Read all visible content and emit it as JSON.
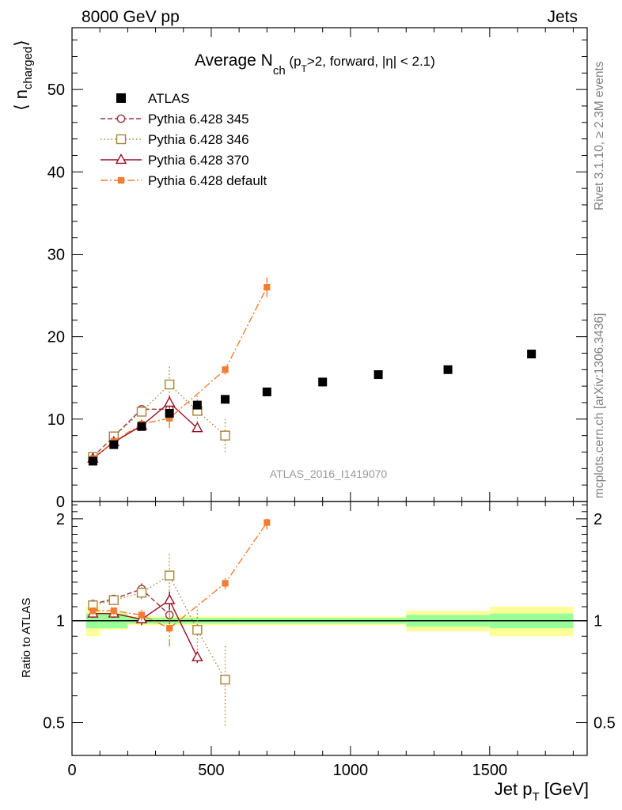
{
  "header": {
    "left": "8000 GeV pp",
    "right": "Jets",
    "side_top": "Rivet 3.1.10, ≥ 2.3M events",
    "side_bottom": "mcplots.cern.ch [arXiv:1306.3436]",
    "watermark": "ATLAS_2016_I1419070"
  },
  "title": {
    "pre": "Average N",
    "sub": "ch",
    "mid": " (p",
    "sub2": "T",
    "post": ">2, forward, |η| < 2.1)"
  },
  "axes": {
    "ylabel_main": "⟨ n",
    "ylabel_main_sub": "charged",
    "ylabel_main_close": "⟩",
    "ylabel_ratio": "Ratio to ATLAS",
    "xlabel": "Jet p",
    "xlabel_sub": "T",
    "xlabel_unit": " [GeV]"
  },
  "chart_data": {
    "type": "scatter",
    "x_range": [
      0,
      1850
    ],
    "y_range_main": [
      0,
      57.5
    ],
    "y_range_ratio": [
      0.4,
      2.25
    ],
    "ratio_scale": "log",
    "x_ticks": [
      0,
      500,
      1000,
      1500
    ],
    "y_ticks_main": [
      0,
      10,
      20,
      30,
      40,
      50
    ],
    "y_ticks_ratio": [
      0.5,
      1,
      2
    ],
    "legend_position": "top-left",
    "reference": {
      "name": "ATLAS",
      "color": "#000000",
      "x": [
        75,
        150,
        250,
        350,
        450,
        550,
        700,
        900,
        1100,
        1350,
        1650
      ],
      "xerr": [
        25,
        50,
        50,
        50,
        50,
        50,
        100,
        100,
        100,
        150,
        150
      ],
      "y": [
        4.9,
        6.9,
        9.1,
        10.7,
        11.7,
        12.4,
        13.3,
        14.5,
        15.4,
        16.0,
        17.9
      ],
      "band_stat": [
        0.05,
        0.05,
        0.02,
        0.02,
        0.02,
        0.02,
        0.02,
        0.02,
        0.02,
        0.04,
        0.05
      ],
      "band_tot": [
        0.1,
        0.06,
        0.03,
        0.03,
        0.03,
        0.03,
        0.03,
        0.03,
        0.03,
        0.07,
        0.1
      ]
    },
    "series": [
      {
        "name": "Pythia 6.428 345",
        "color": "#993341",
        "marker": "open-circle",
        "dash": "6,3",
        "x": [
          75,
          150,
          250,
          350
        ],
        "y": [
          5.4,
          7.9,
          11.2,
          11.2
        ],
        "yerr": [
          0.3,
          0.3,
          0.5,
          1.2
        ],
        "ratio": [
          1.12,
          1.16,
          1.24,
          1.04
        ],
        "ratio_err": [
          0.03,
          0.03,
          0.05,
          0.11
        ]
      },
      {
        "name": "Pythia 6.428 346",
        "color": "#a6853a",
        "marker": "open-square",
        "dash": "1.5,3",
        "x": [
          75,
          150,
          250,
          350,
          450,
          550
        ],
        "y": [
          5.4,
          7.9,
          10.9,
          14.2,
          11.0,
          8.0
        ],
        "yerr": [
          0.3,
          0.3,
          0.5,
          2.3,
          1.8,
          2.0
        ],
        "ratio": [
          1.11,
          1.15,
          1.21,
          1.36,
          0.94,
          0.67
        ],
        "ratio_err": [
          0.03,
          0.03,
          0.05,
          0.22,
          0.16,
          0.18
        ]
      },
      {
        "name": "Pythia 6.428 370",
        "color": "#990d26",
        "marker": "open-triangle",
        "dash": "",
        "x": [
          75,
          150,
          250,
          350,
          450
        ],
        "y": [
          5.2,
          7.2,
          9.2,
          12.0,
          8.9
        ],
        "yerr": [
          0.3,
          0.3,
          0.4,
          0.8,
          0.4
        ],
        "ratio": [
          1.05,
          1.05,
          1.01,
          1.15,
          0.78
        ],
        "ratio_err": [
          0.03,
          0.03,
          0.04,
          0.07,
          0.03
        ]
      },
      {
        "name": "Pythia 6.428 default",
        "color": "#f27c33",
        "marker": "filled-square",
        "dash": "9,3,2,3",
        "x": [
          75,
          150,
          250,
          350,
          550,
          700
        ],
        "y": [
          5.2,
          7.3,
          9.4,
          10.1,
          16.0,
          26.0
        ],
        "yerr": [
          0.3,
          0.3,
          0.4,
          1.2,
          0.6,
          1.2
        ],
        "ratio": [
          1.07,
          1.07,
          1.04,
          0.95,
          1.29,
          1.95
        ],
        "ratio_err": [
          0.03,
          0.03,
          0.04,
          0.11,
          0.05,
          0.09
        ]
      }
    ]
  }
}
